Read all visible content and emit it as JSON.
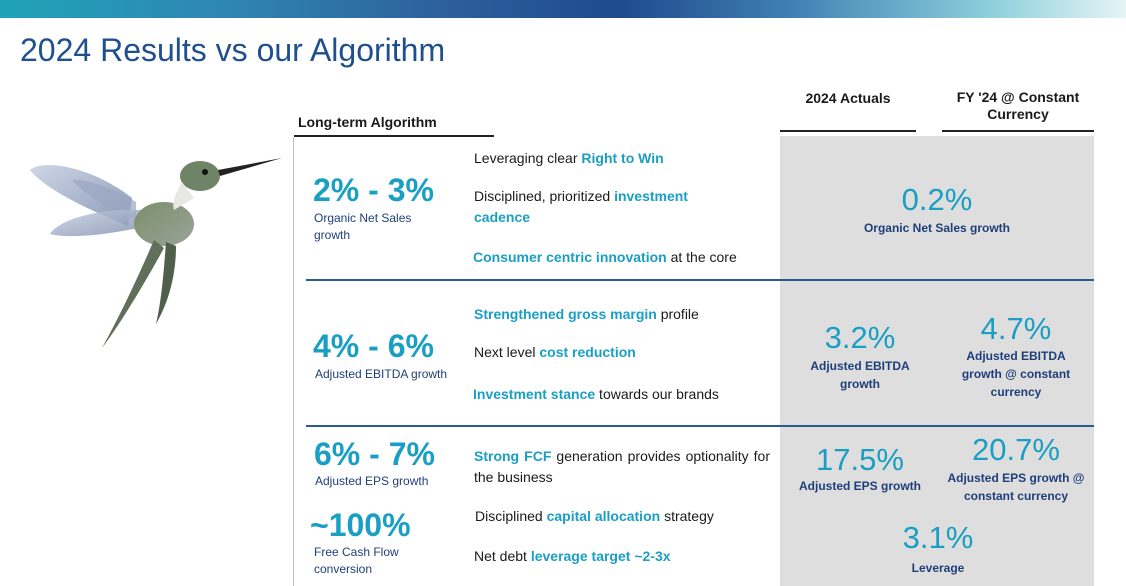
{
  "title": "2024 Results vs our Algorithm",
  "headers": {
    "long_term": "Long-term Algorithm",
    "actuals": "2024 Actuals",
    "constant_currency": "FY '24 @ Constant Currency"
  },
  "rows": {
    "sales": {
      "target": "2% - 3%",
      "target_label": "Organic Net Sales growth",
      "lines": [
        {
          "pre": "Leveraging clear ",
          "hl": "Right to Win",
          "post": ""
        },
        {
          "pre": "Disciplined, prioritized ",
          "hl": "investment cadence",
          "post": ""
        },
        {
          "pre": "",
          "hl": "Consumer centric innovation",
          "post": " at the core"
        }
      ],
      "actual": "0.2%",
      "actual_label": "Organic Net Sales growth"
    },
    "ebitda": {
      "target": "4% - 6%",
      "target_label": "Adjusted EBITDA growth",
      "lines": [
        {
          "pre": "",
          "hl": "Strengthened gross margin",
          "post": " profile"
        },
        {
          "pre": "Next level ",
          "hl": "cost reduction",
          "post": ""
        },
        {
          "pre": "",
          "hl": "Investment stance",
          "post": " towards our brands"
        }
      ],
      "actual": "3.2%",
      "actual_label": "Adjusted EBITDA growth",
      "cc": "4.7%",
      "cc_label": "Adjusted EBITDA growth @ constant currency"
    },
    "eps": {
      "target": "6% - 7%",
      "target_label": "Adjusted EPS growth",
      "target2": "~100%",
      "target2_label": "Free Cash Flow conversion",
      "lines": [
        {
          "hl1": "Strong",
          "hl2": "FCF",
          "post": " generation provides optionality for the business"
        },
        {
          "pre": "Disciplined ",
          "hl": "capital allocation",
          "post": " strategy"
        },
        {
          "pre": "Net debt ",
          "hl": "leverage target ~2-3x",
          "post": ""
        }
      ],
      "actual": "17.5%",
      "actual_label": "Adjusted EPS growth",
      "cc": "20.7%",
      "cc_label": "Adjusted EPS growth @ constant currency",
      "leverage": "3.1%",
      "leverage_label": "Leverage"
    }
  }
}
